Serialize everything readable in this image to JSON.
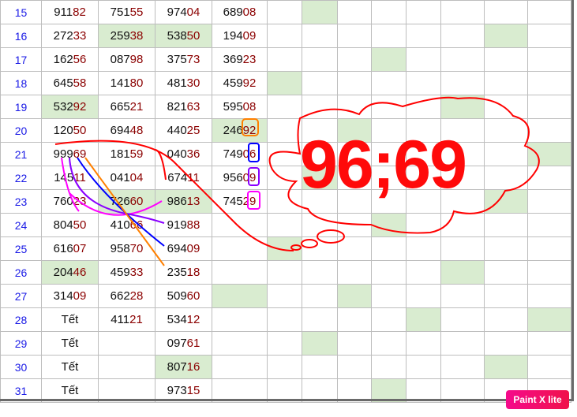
{
  "rows": [
    {
      "day": "15",
      "values": [
        "91182",
        "75155",
        "97404",
        "68908"
      ],
      "green": [
        6
      ]
    },
    {
      "day": "16",
      "values": [
        "27233",
        "25938",
        "53850",
        "19409"
      ],
      "green": [
        2,
        3,
        11
      ]
    },
    {
      "day": "17",
      "values": [
        "16256",
        "08798",
        "37573",
        "36923"
      ],
      "green": [
        8
      ]
    },
    {
      "day": "18",
      "values": [
        "64558",
        "14180",
        "48130",
        "45992"
      ],
      "green": [
        5
      ]
    },
    {
      "day": "19",
      "values": [
        "53292",
        "66521",
        "82163",
        "59508"
      ],
      "green": [
        1,
        10
      ]
    },
    {
      "day": "20",
      "values": [
        "12050",
        "69448",
        "44025",
        "24692"
      ],
      "green": [
        4,
        7
      ]
    },
    {
      "day": "21",
      "values": [
        "99969",
        "18159",
        "04036",
        "74906"
      ],
      "green": [
        12
      ]
    },
    {
      "day": "22",
      "values": [
        "14511",
        "04104",
        "67411",
        "95609"
      ],
      "green": [
        6
      ]
    },
    {
      "day": "23",
      "values": [
        "76023",
        "72660",
        "98613",
        "74529"
      ],
      "green": [
        2,
        3,
        11
      ]
    },
    {
      "day": "24",
      "values": [
        "80450",
        "41066",
        "91988",
        ""
      ],
      "green": [
        8
      ]
    },
    {
      "day": "25",
      "values": [
        "61607",
        "95870",
        "69409",
        ""
      ],
      "green": [
        5
      ]
    },
    {
      "day": "26",
      "values": [
        "20446",
        "45933",
        "23518",
        ""
      ],
      "green": [
        1,
        10
      ]
    },
    {
      "day": "27",
      "values": [
        "31409",
        "66228",
        "50960",
        ""
      ],
      "green": [
        4,
        7
      ]
    },
    {
      "day": "28",
      "values": [
        "Tết",
        "41121",
        "53412",
        ""
      ],
      "green": [
        9,
        12
      ]
    },
    {
      "day": "29",
      "values": [
        "Tết",
        "",
        "09761",
        ""
      ],
      "green": [
        6
      ]
    },
    {
      "day": "30",
      "values": [
        "Tết",
        "",
        "80716",
        ""
      ],
      "green": [
        3,
        11
      ]
    },
    {
      "day": "31",
      "values": [
        "Tết",
        "",
        "97315",
        ""
      ],
      "green": [
        8
      ]
    }
  ],
  "annotation": {
    "text": "96;69",
    "color": "#ff0a0a"
  },
  "highlight_colors": {
    "green": "#d9ecd0",
    "day": "#1a1ae6",
    "tail_digits": "#8b0000"
  },
  "badge": {
    "label": "Paint X lite"
  }
}
